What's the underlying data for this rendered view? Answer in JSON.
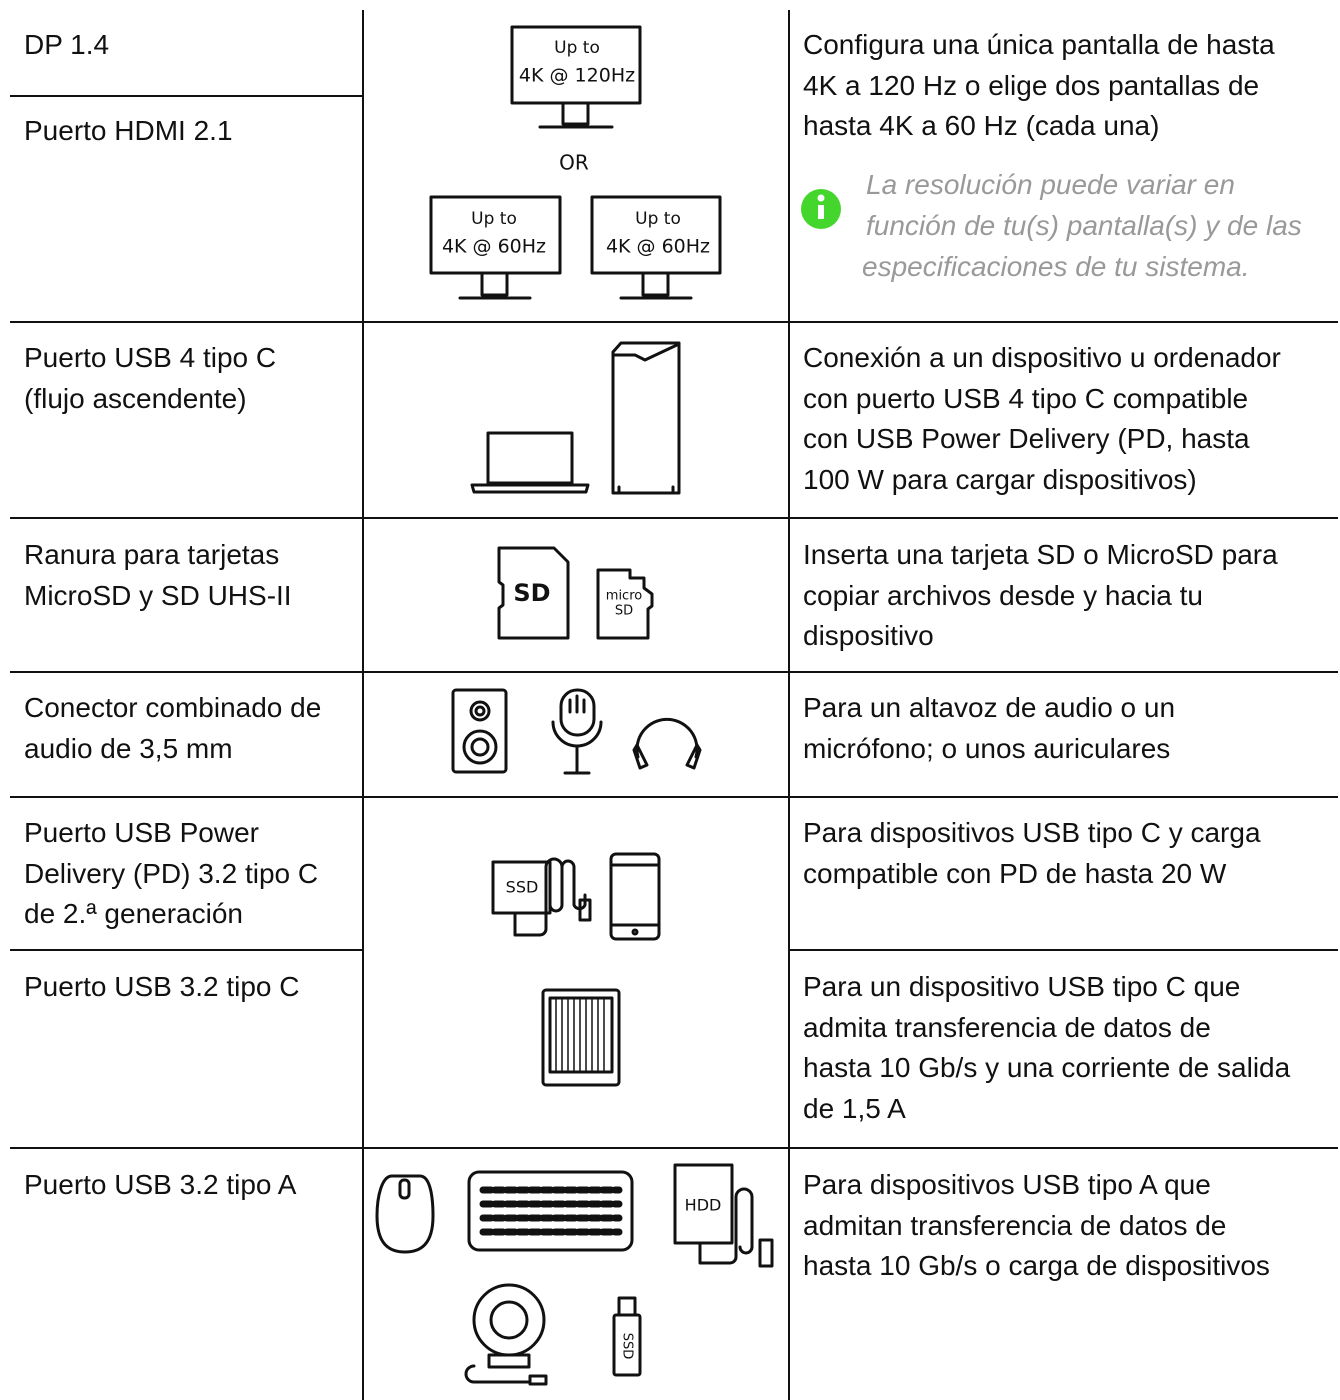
{
  "ports": [
    [
      "DP 1.4"
    ],
    [
      "Puerto HDMI 2.1"
    ],
    [
      "Puerto USB 4 tipo C",
      "(flujo ascendente)"
    ],
    [
      "Ranura para tarjetas",
      "MicroSD y SD UHS-II"
    ],
    [
      "Conector combinado de",
      "audio de 3,5 mm"
    ],
    [
      "Puerto USB Power",
      "Delivery (PD) 3.2 tipo C",
      "de 2.ª generación"
    ],
    [
      "Puerto USB 3.2 tipo C"
    ],
    [
      "Puerto USB 3.2 tipo A"
    ]
  ],
  "descriptions": [
    [
      "Configura una única pantalla de hasta",
      "4K a 120 Hz o elige dos pantallas de",
      "hasta 4K a 60 Hz (cada una)"
    ],
    [
      "Conexión a un dispositivo u ordenador",
      "con puerto USB 4 tipo C compatible",
      "con USB Power Delivery (PD, hasta",
      "100 W para cargar dispositivos)"
    ],
    [
      "Inserta una tarjeta SD o MicroSD para",
      "copiar archivos desde y hacia tu",
      "dispositivo"
    ],
    [
      "Para un altavoz de audio o un",
      "micrófono; o unos auriculares"
    ],
    [
      "Para dispositivos USB tipo C y carga",
      "compatible con PD de hasta 20 W"
    ],
    [
      "Para un dispositivo USB tipo C que",
      "admita transferencia de datos de",
      "hasta 10 Gb/s y una corriente de salida",
      "de 1,5 A"
    ],
    [
      "Para dispositivos USB tipo A que",
      "admitan transferencia de datos de",
      "hasta 10 Gb/s o carga de dispositivos"
    ]
  ],
  "note": [
    "La resolución puede variar en",
    "función de tu(s) pantalla(s) y de las",
    "especificaciones de tu sistema."
  ],
  "icons": {
    "monitor_single": [
      "Up to",
      "4K @ 120Hz"
    ],
    "or": "OR",
    "monitor_left": [
      "Up to",
      "4K @ 60Hz"
    ],
    "monitor_right": [
      "Up to",
      "4K @ 60Hz"
    ],
    "sd": "SD",
    "microsd": [
      "micro",
      "SD"
    ],
    "ssd": "SSD",
    "hdd": "HDD",
    "usb_stick": "SSD"
  }
}
